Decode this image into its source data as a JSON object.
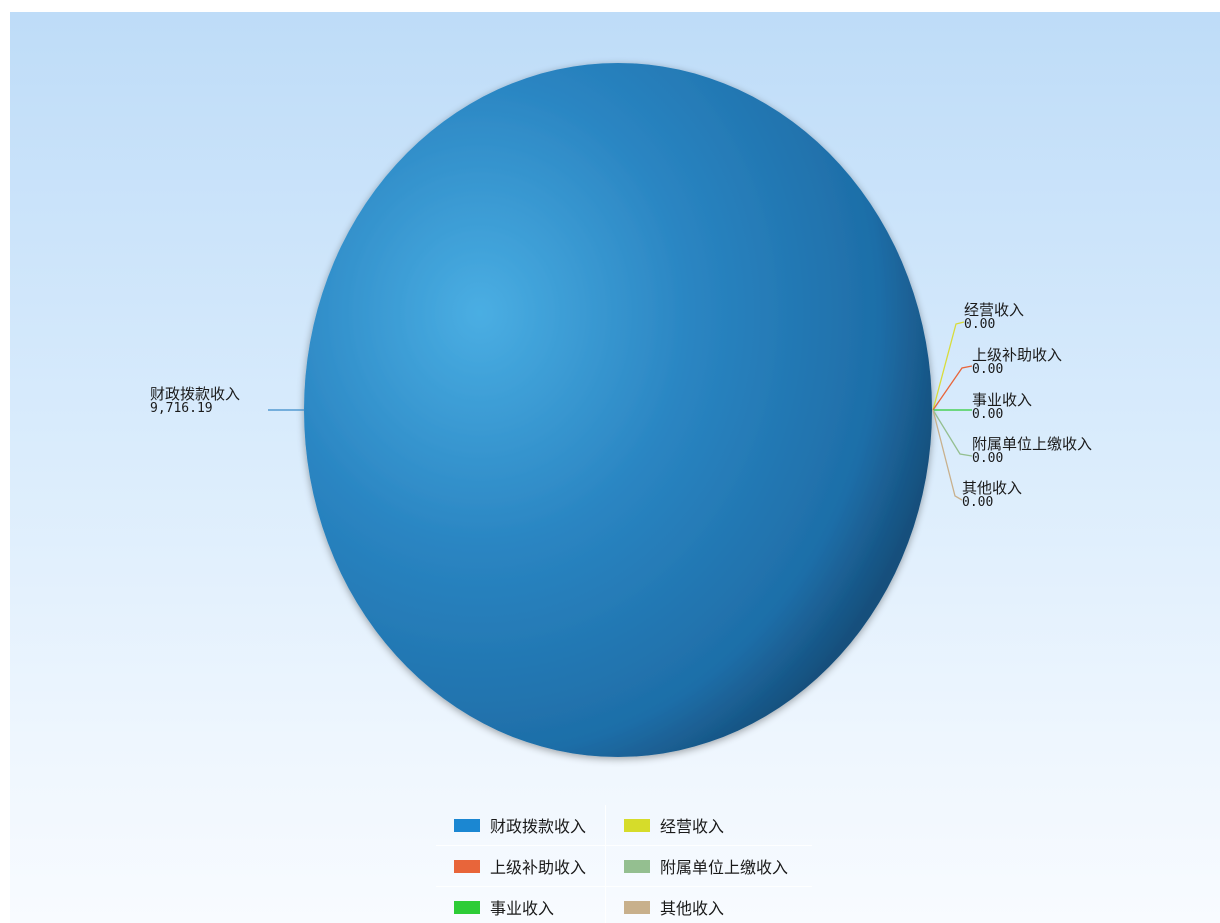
{
  "chart_data": {
    "type": "pie",
    "categories": [
      "财政拨款收入",
      "经营收入",
      "上级补助收入",
      "事业收入",
      "附属单位上缴收入",
      "其他收入"
    ],
    "values": [
      9716.19,
      0,
      0,
      0,
      0,
      0
    ],
    "value_labels": [
      "9,716.19",
      "0.00",
      "0.00",
      "0.00",
      "0.00",
      "0.00"
    ],
    "colors": [
      "#1b87d2",
      "#d6dc2a",
      "#e8653a",
      "#2ecc37",
      "#94bf90",
      "#c8b08c"
    ],
    "legend_placement": "bottom",
    "title": ""
  },
  "legend": [
    {
      "label": "财政拨款收入",
      "color": "#1b87d2"
    },
    {
      "label": "经营收入",
      "color": "#d6dc2a"
    },
    {
      "label": "上级补助收入",
      "color": "#e8653a"
    },
    {
      "label": "附属单位上缴收入",
      "color": "#94bf90"
    },
    {
      "label": "事业收入",
      "color": "#2ecc37"
    },
    {
      "label": "其他收入",
      "color": "#c8b08c"
    }
  ]
}
